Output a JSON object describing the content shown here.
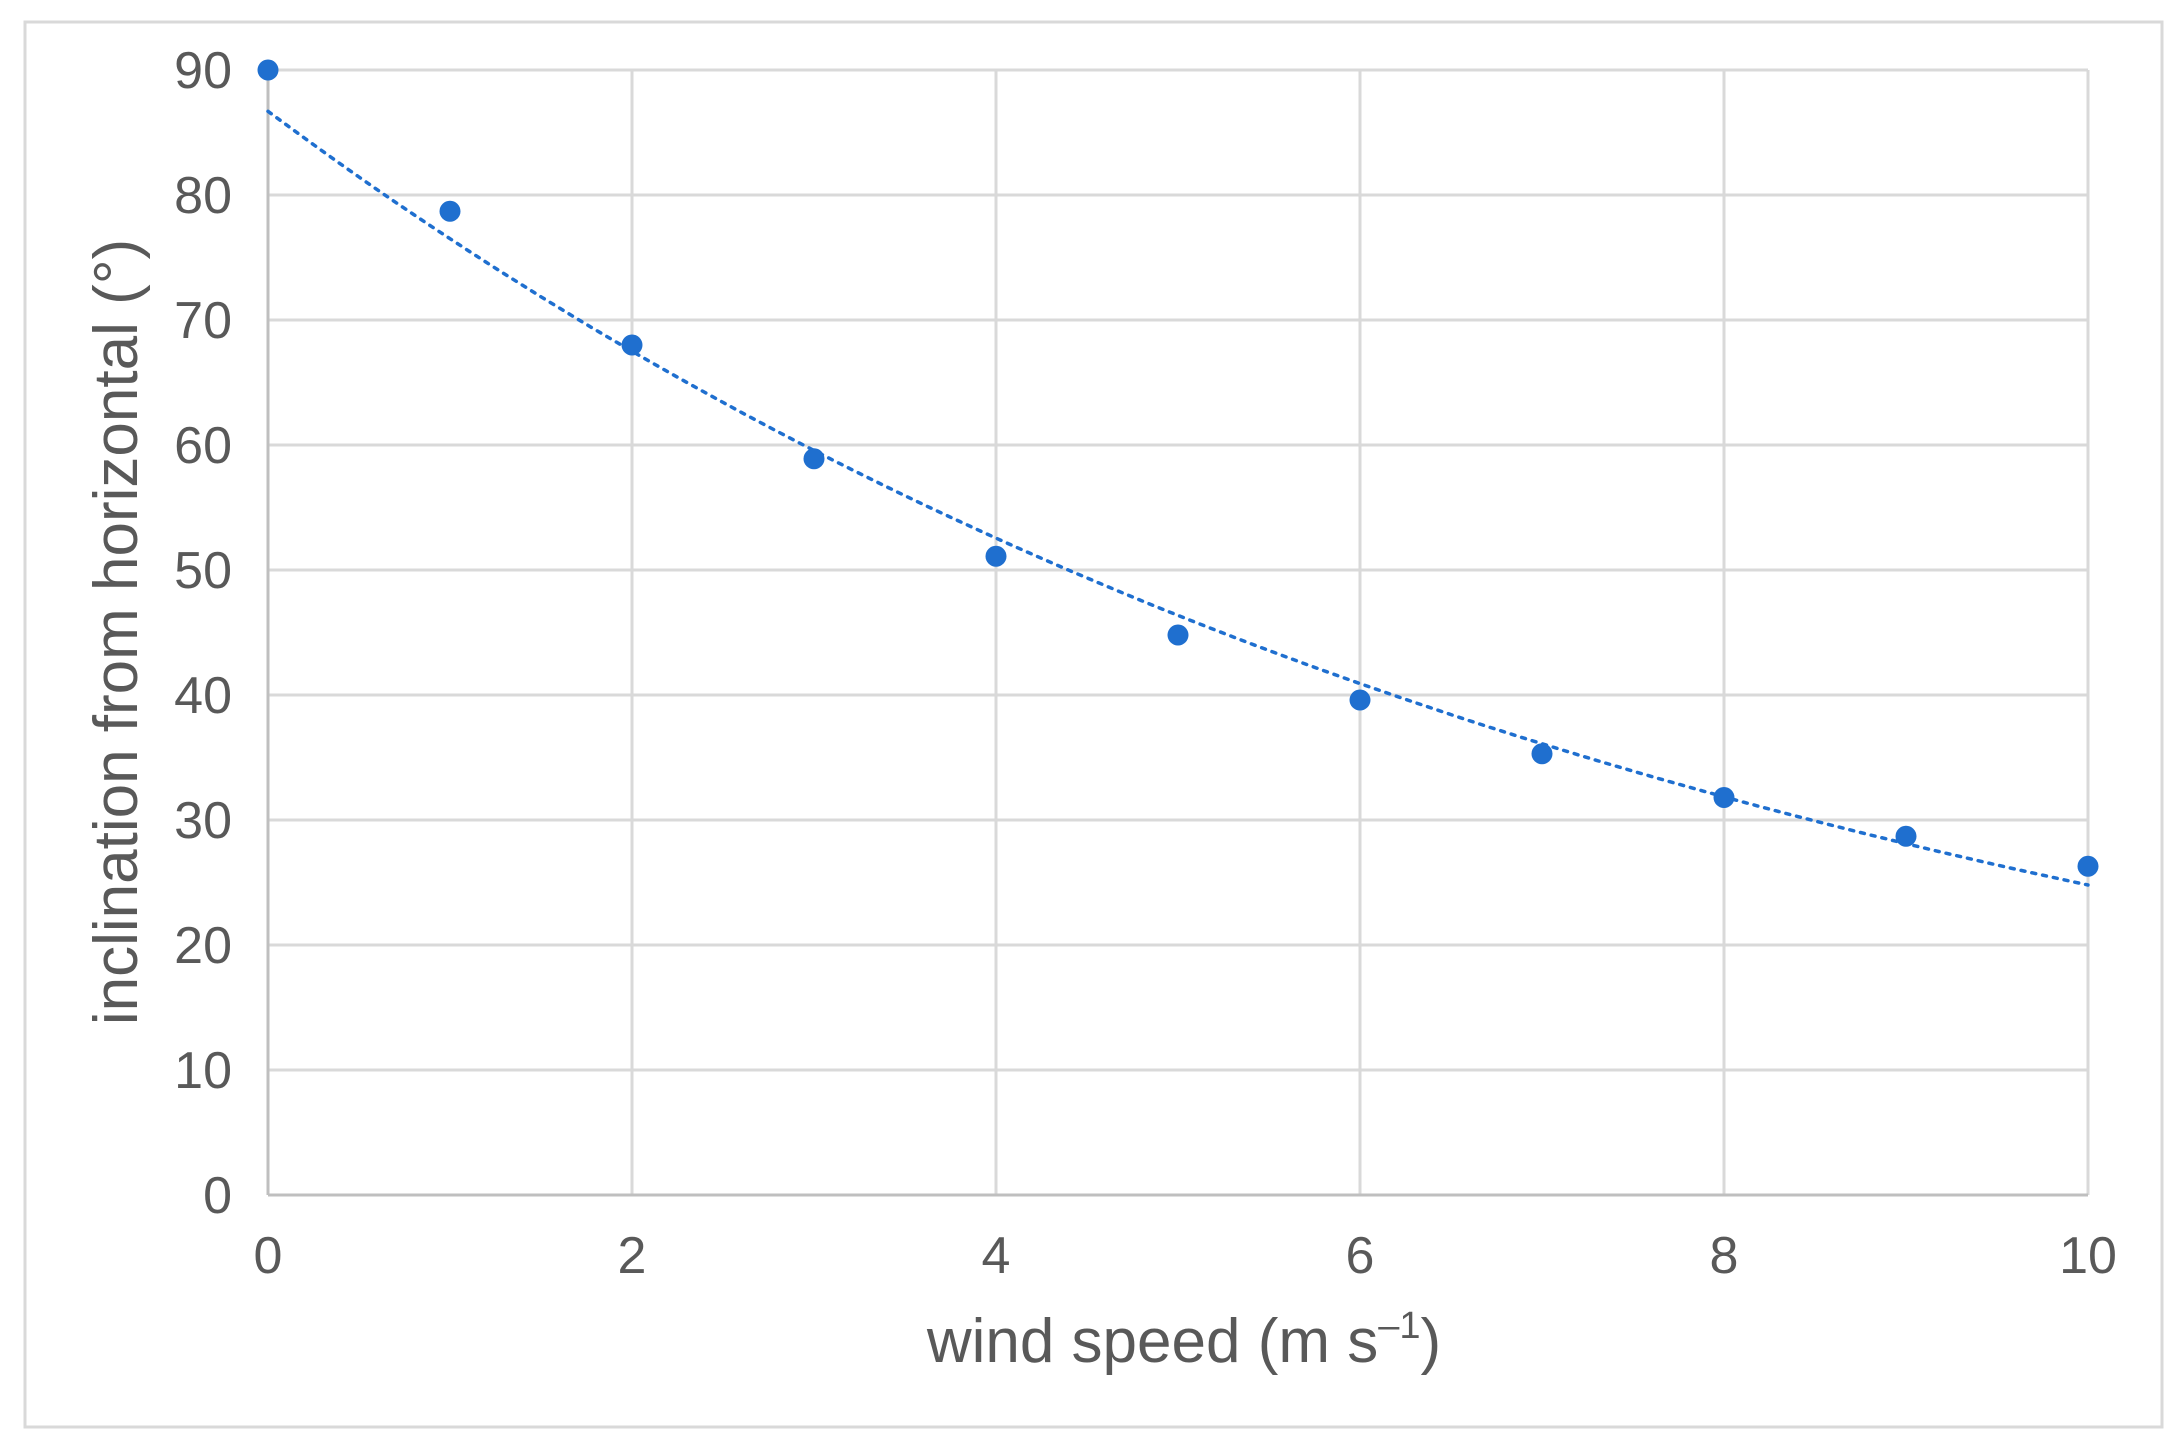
{
  "chart_data": {
    "type": "scatter",
    "title": "",
    "xlabel": "wind speed (m s",
    "xlabel_superscript": "–1",
    "xlabel_suffix": ")",
    "ylabel": "inclination from horizontal (°)",
    "xlim": [
      0,
      10
    ],
    "ylim": [
      0,
      90
    ],
    "x_ticks": [
      "0",
      "2",
      "4",
      "6",
      "8",
      "10"
    ],
    "y_ticks": [
      "0",
      "10",
      "20",
      "30",
      "40",
      "50",
      "60",
      "70",
      "80",
      "90"
    ],
    "grid": true,
    "legend": "none",
    "series": [
      {
        "x": [
          0,
          1,
          2,
          3,
          4,
          5,
          6,
          7,
          8,
          9,
          10
        ],
        "y": [
          90,
          78.7,
          68,
          58.9,
          51.1,
          44.8,
          39.6,
          35.3,
          31.8,
          28.7,
          26.3
        ],
        "color": "#1f6fcf"
      }
    ],
    "trendline": {
      "kind": "exponential",
      "style": "dotted",
      "color": "#1f6fcf",
      "x": [
        0,
        1,
        2,
        3,
        4,
        5,
        6,
        7,
        8,
        9,
        10
      ],
      "y": [
        86.7,
        76.4,
        67.4,
        59.4,
        52.4,
        46.2,
        40.8,
        36.0,
        31.7,
        28.0,
        24.8
      ]
    },
    "colors": {
      "marker": "#1f6fcf",
      "grid": "#d9d9d9",
      "text": "#595959",
      "border": "#d9d9d9"
    }
  }
}
